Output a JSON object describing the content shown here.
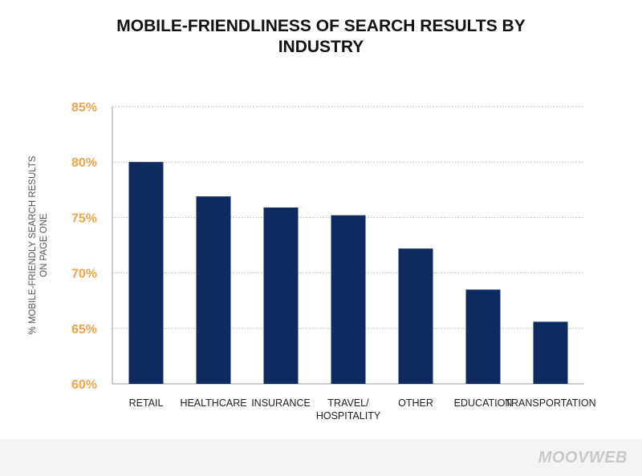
{
  "chart_data": {
    "type": "bar",
    "title": "MOBILE-FRIENDLINESS OF SEARCH RESULTS BY INDUSTRY",
    "title_lines": [
      "MOBILE-FRIENDLINESS OF SEARCH RESULTS BY",
      "INDUSTRY"
    ],
    "categories": [
      [
        "RETAIL"
      ],
      [
        "HEALTHCARE"
      ],
      [
        "INSURANCE"
      ],
      [
        "TRAVEL/",
        "HOSPITALITY"
      ],
      [
        "OTHER"
      ],
      [
        "EDUCATION"
      ],
      [
        "TRANSPORTATION"
      ]
    ],
    "values": [
      80.0,
      76.9,
      75.9,
      75.2,
      72.2,
      68.5,
      65.6
    ],
    "ylabel_lines": [
      "% MOBILE-FRIENDLY SEARCH RESULTS",
      "ON PAGE ONE"
    ],
    "xlabel": "",
    "ylim": [
      60,
      85
    ],
    "yticks": [
      60,
      65,
      70,
      75,
      80,
      85
    ],
    "ytick_labels": [
      "60%",
      "65%",
      "70%",
      "75%",
      "80%",
      "85%"
    ],
    "grid": true,
    "legend": "none",
    "colors": {
      "bar": "#0f2a5e",
      "tick_label": "#f0a348",
      "grid": "#b5b5b5",
      "axis": "#9a9a9a"
    }
  },
  "brand": {
    "logo_text": "MOOVWEB"
  }
}
